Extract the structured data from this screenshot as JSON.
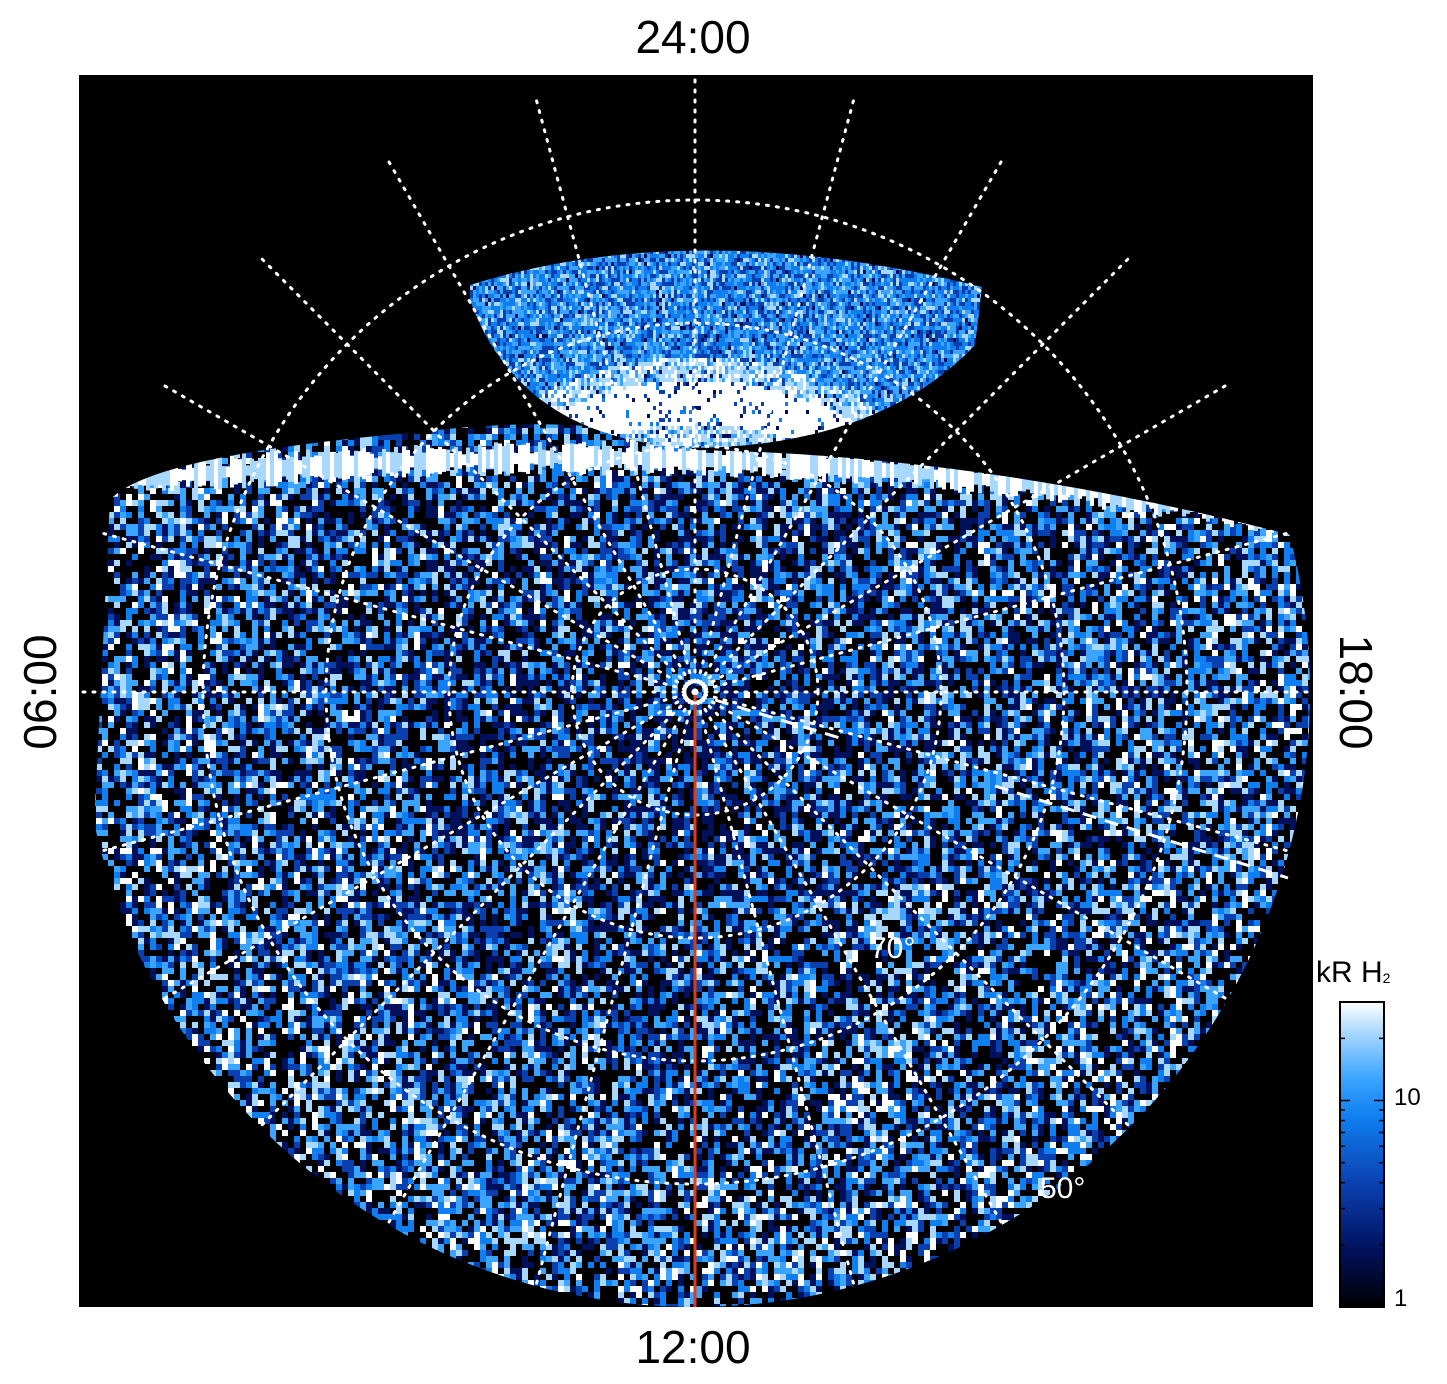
{
  "figure": {
    "mlt_labels": {
      "top": "24:00",
      "bottom": "12:00",
      "left": "06:00",
      "right": "18:00"
    },
    "latitude_labels": [
      {
        "text": "70°",
        "lat": 70
      },
      {
        "text": "50°",
        "lat": 50
      }
    ],
    "colorbar": {
      "title_main": "kR H",
      "title_sub": "2",
      "ticks": [
        "10",
        "1"
      ],
      "scale": "log",
      "range": [
        1,
        30
      ],
      "colormap": [
        "#000000",
        "#00105a",
        "#0a3fb0",
        "#0f7ef0",
        "#3aa4ff",
        "#a9d8ff",
        "#ffffff"
      ]
    },
    "colors": {
      "background": "#000000",
      "grid": "#ffffff",
      "meridian_line": "#e03c12",
      "dashed_line": "#ffffff"
    },
    "grid": {
      "latitude_circles": [
        80,
        70,
        60,
        50
      ],
      "meridian_step_hours": 1,
      "style": "dotted"
    }
  }
}
